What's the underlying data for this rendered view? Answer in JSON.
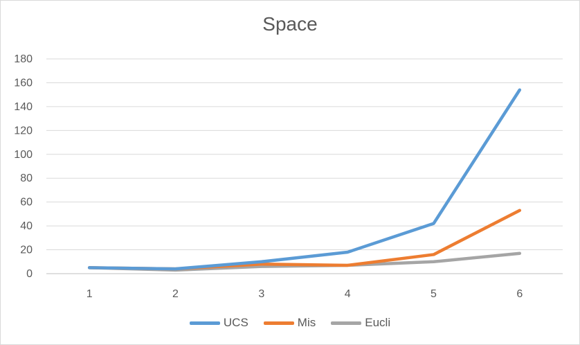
{
  "chart_data": {
    "type": "line",
    "title": "Space",
    "xlabel": "",
    "ylabel": "",
    "categories": [
      "1",
      "2",
      "3",
      "4",
      "5",
      "6"
    ],
    "ylim": [
      0,
      180
    ],
    "yticks": [
      0,
      20,
      40,
      60,
      80,
      100,
      120,
      140,
      160,
      180
    ],
    "grid": true,
    "legend": "bottom",
    "series": [
      {
        "name": "UCS",
        "color": "#5b9bd5",
        "values": [
          5,
          4,
          10,
          18,
          42,
          154
        ]
      },
      {
        "name": "Mis",
        "color": "#ed7d31",
        "values": [
          5,
          4,
          8,
          7,
          16,
          53
        ]
      },
      {
        "name": "Eucli",
        "color": "#a5a5a5",
        "values": [
          5,
          3,
          6,
          7,
          10,
          17
        ]
      }
    ]
  }
}
